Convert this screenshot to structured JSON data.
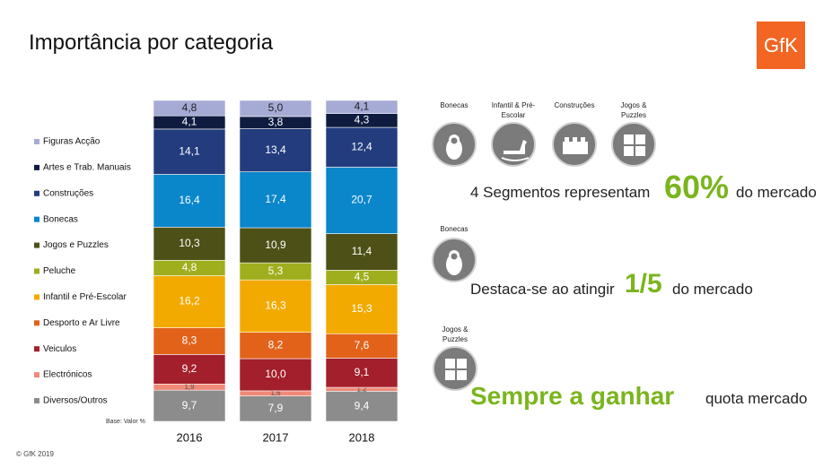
{
  "title": "Importância por categoria",
  "logo": "GfK",
  "copyright": "© GfK 2019",
  "chart_data": {
    "type": "stacked_bar",
    "note": "Base: Valor %",
    "categories": [
      "2016",
      "2017",
      "2018"
    ],
    "series": [
      {
        "name": "Diversos/Outros",
        "color": "#8c8c8c",
        "label_color": "#ffffff",
        "values": [
          9.7,
          7.9,
          9.4
        ],
        "value_labels": [
          "9,7",
          "7,9",
          "9,4"
        ]
      },
      {
        "name": "Electrónicos",
        "color": "#f08a78",
        "label_color": "#555555",
        "values": [
          1.9,
          1.6,
          1.2
        ],
        "value_labels": [
          "1,9",
          "1,6",
          "1,2"
        ]
      },
      {
        "name": "Veiculos",
        "color": "#a31f2b",
        "label_color": "#ffffff",
        "values": [
          9.2,
          10.0,
          9.1
        ],
        "value_labels": [
          "9,2",
          "10,0",
          "9,1"
        ]
      },
      {
        "name": "Desporto e Ar Livre",
        "color": "#e2621a",
        "label_color": "#ffffff",
        "values": [
          8.3,
          8.2,
          7.6
        ],
        "value_labels": [
          "8,3",
          "8,2",
          "7,6"
        ]
      },
      {
        "name": "Infantil e Pré-Escolar",
        "color": "#f2aa00",
        "label_color": "#ffffff",
        "values": [
          16.2,
          16.3,
          15.3
        ],
        "value_labels": [
          "16,2",
          "16,3",
          "15,3"
        ]
      },
      {
        "name": "Peluche",
        "color": "#9fae1c",
        "label_color": "#ffffff",
        "values": [
          4.8,
          5.3,
          4.5
        ],
        "value_labels": [
          "4,8",
          "5,3",
          "4,5"
        ]
      },
      {
        "name": "Jogos e Puzzles",
        "color": "#4e5117",
        "label_color": "#ffffff",
        "values": [
          10.3,
          10.9,
          11.4
        ],
        "value_labels": [
          "10,3",
          "10,9",
          "11,4"
        ]
      },
      {
        "name": "Bonecas",
        "color": "#0a86cb",
        "label_color": "#ffffff",
        "values": [
          16.4,
          17.4,
          20.7
        ],
        "value_labels": [
          "16,4",
          "17,4",
          "20,7"
        ]
      },
      {
        "name": "Construções",
        "color": "#223c7d",
        "label_color": "#ffffff",
        "values": [
          14.1,
          13.4,
          12.4
        ],
        "value_labels": [
          "14,1",
          "13,4",
          "12,4"
        ]
      },
      {
        "name": "Artes e Trab. Manuais",
        "color": "#0f1c3f",
        "label_color": "#ffffff",
        "values": [
          4.1,
          3.8,
          4.3
        ],
        "value_labels": [
          "4,1",
          "3,8",
          "4,3"
        ]
      },
      {
        "name": "Figuras Acção",
        "color": "#a6abd6",
        "label_color": "#222222",
        "values": [
          4.8,
          5.0,
          4.1
        ],
        "value_labels": [
          "4,8",
          "5,0",
          "4,1"
        ]
      }
    ]
  },
  "highlights": {
    "icons": [
      "Bonecas",
      "Infantil & Pré-Escolar",
      "Construções",
      "Jogos & Puzzles"
    ],
    "first": {
      "text": "4 Segmentos representam",
      "figure": "60%",
      "suffix": "do mercado"
    },
    "second": {
      "icon": "Bonecas",
      "text": "Destaca-se ao atingir",
      "figure": "1/5",
      "suffix": "do mercado"
    },
    "third": {
      "icon": "Jogos & Puzzles",
      "figure": "Sempre a ganhar",
      "suffix": "quota mercado"
    }
  }
}
